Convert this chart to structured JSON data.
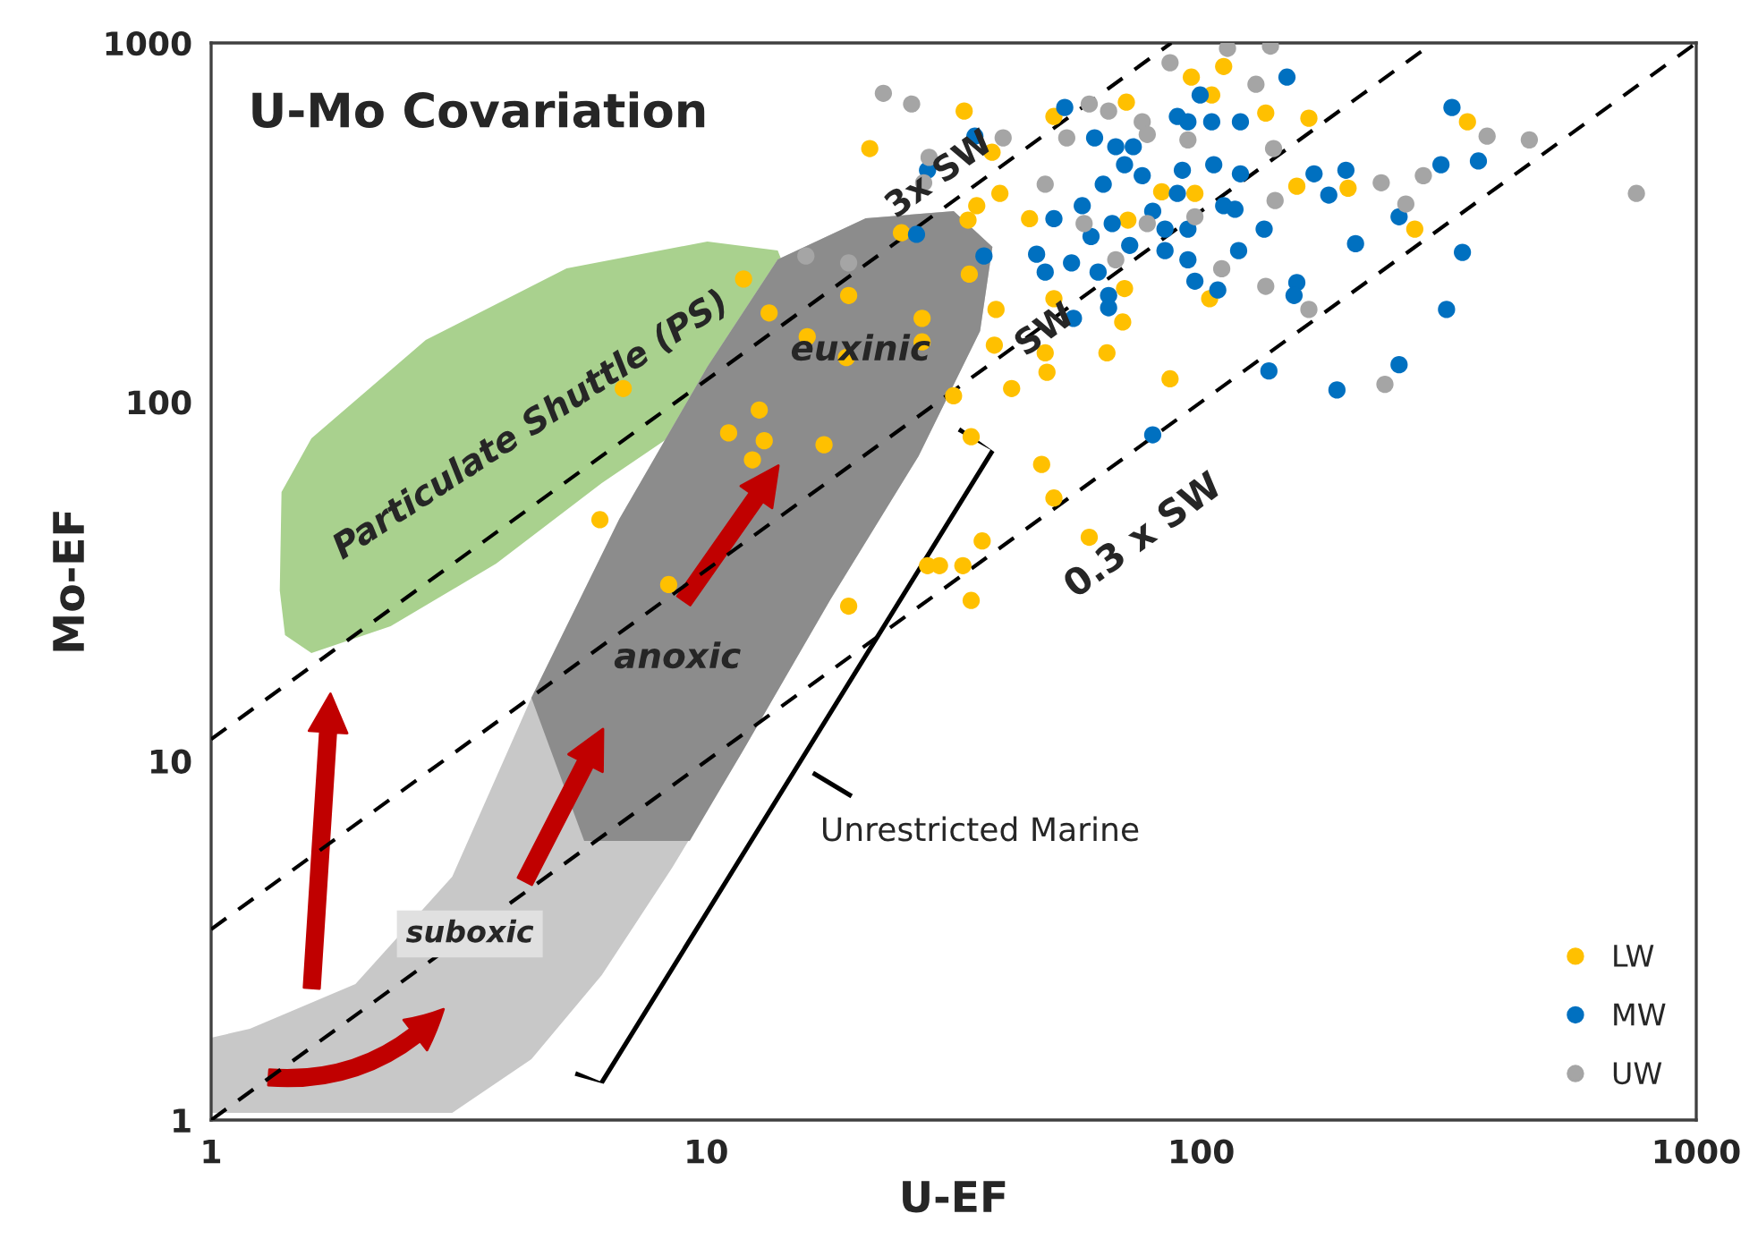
{
  "chart_data": {
    "type": "scatter",
    "title": "U-Mo Covariation",
    "xlabel": "U-EF",
    "ylabel": "Mo-EF",
    "log": "xy",
    "xlim": [
      1,
      1000
    ],
    "ylim": [
      1,
      1000
    ],
    "xticks": [
      1,
      10,
      100,
      1000
    ],
    "yticks": [
      1,
      10,
      100,
      1000
    ],
    "legend": "bottom right",
    "marker": "circle",
    "series": [
      {
        "type": "line",
        "color": "#000000",
        "line_style": "dashed",
        "marker": "none",
        "x": [
          1,
          87
        ],
        "values": [
          11.5,
          1000
        ]
      },
      {
        "type": "line",
        "color": "#000000",
        "line_style": "dashed",
        "marker": "none",
        "x": [
          1,
          294
        ],
        "values": [
          3.4,
          1000
        ]
      },
      {
        "type": "line",
        "color": "#000000",
        "line_style": "dashed",
        "marker": "none",
        "x": [
          1,
          1000
        ],
        "values": [
          1,
          1000
        ]
      },
      {
        "name": "LW",
        "color": "#ffc000",
        "x": [
          11.9,
          13.4,
          6.8,
          16.0,
          12.8,
          11.1,
          13.1,
          12.4,
          17.3,
          6.1,
          8.4,
          21.4,
          33.2,
          24.8,
          33.8,
          34.0,
          19.4,
          27.3,
          27.3,
          19.2,
          31.6,
          38.5,
          38.2,
          41.4,
          48.4,
          48.8,
          50.4,
          64.5,
          69.4,
          86.5,
          37.8,
          39.2,
          35.2,
          45.0,
          50.4,
          70.6,
          71.1,
          83.2,
          95.5,
          104,
          105,
          111,
          97.1,
          70.0,
          34.3,
          165,
          345,
          156,
          198,
          270,
          135,
          47.6,
          50.4,
          59.4,
          36.1,
          28.0,
          29.6,
          33.0,
          19.4,
          34.3
        ],
        "values": [
          220,
          177,
          109,
          152,
          95,
          82,
          78,
          69,
          76,
          47,
          31,
          508,
          646,
          296,
          321,
          227,
          198,
          171,
          147,
          133,
          104,
          181,
          144,
          109,
          137,
          121,
          194,
          137,
          167,
          116,
          496,
          381,
          352,
          324,
          624,
          684,
          321,
          385,
          803,
          194,
          716,
          860,
          381,
          207,
          80,
          617,
          603,
          399,
          394,
          303,
          638,
          67,
          54,
          42,
          41,
          35,
          35,
          35,
          27,
          28
        ]
      },
      {
        "name": "MW",
        "color": "#0070c0",
        "x": [
          34.9,
          28.0,
          26.6,
          36.4,
          53.0,
          60.9,
          67.2,
          72.9,
          89.5,
          99.5,
          94.0,
          105,
          63.4,
          70.0,
          57.5,
          50.4,
          46.5,
          48.4,
          54.7,
          59.9,
          66.1,
          71.7,
          61.9,
          65.0,
          65.0,
          55.2,
          79.8,
          84.5,
          94.0,
          84.5,
          94.0,
          97.1,
          108,
          91.6,
          106,
          111,
          79.8,
          76.0,
          89.5,
          149,
          321,
          305,
          363,
          196,
          169,
          181,
          251,
          134,
          205,
          337,
          119,
          156,
          154,
          313,
          137,
          251,
          188,
          117,
          120,
          120
        ],
        "values": [
          550,
          442,
          293,
          255,
          661,
          544,
          514,
          514,
          624,
          716,
          603,
          603,
          404,
          458,
          352,
          324,
          258,
          230,
          244,
          289,
          314,
          273,
          230,
          198,
          183,
          171,
          340,
          303,
          303,
          264,
          249,
          217,
          205,
          442,
          458,
          352,
          81,
          427,
          381,
          803,
          661,
          458,
          469,
          442,
          432,
          377,
          328,
          303,
          276,
          261,
          264,
          215,
          198,
          181,
          122,
          127,
          108,
          344,
          432,
          603
        ]
      },
      {
        "name": "UW",
        "color": "#a5a5a5",
        "x": [
          15.9,
          22.8,
          26.0,
          28.2,
          27.5,
          19.4,
          39.8,
          59.4,
          65.0,
          76.0,
          77.8,
          48.4,
          58.0,
          77.8,
          67.2,
          97.1,
          110,
          86.5,
          94.0,
          53.5,
          138,
          129,
          378,
          460,
          231,
          281,
          259,
          757,
          135,
          165,
          235,
          141,
          140,
          113
        ],
        "values": [
          255,
          724,
          676,
          480,
          408,
          244,
          544,
          676,
          646,
          603,
          556,
          404,
          314,
          314,
          249,
          328,
          235,
          881,
          537,
          544,
          980,
          767,
          550,
          537,
          408,
          427,
          356,
          381,
          210,
          181,
          112,
          364,
          508,
          966
        ]
      }
    ],
    "annotations": [
      "Particulate Shuttle (PS)",
      "euxinic",
      "anoxic",
      "suboxic",
      "Unrestricted Marine",
      "3x SW",
      "SW",
      "0.3 x SW"
    ]
  }
}
